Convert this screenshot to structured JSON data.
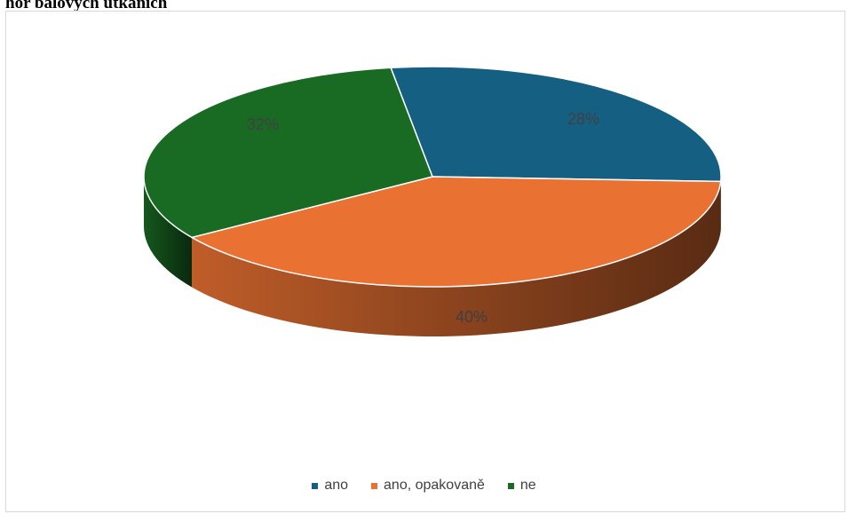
{
  "title": "hor balových utkáních",
  "chart_data": {
    "type": "pie",
    "style": "3d",
    "series": [
      {
        "name": "ano",
        "value": 28,
        "label": "28%",
        "color": "#156082"
      },
      {
        "name": "ano, opakovaně",
        "value": 40,
        "label": "40%",
        "color": "#e97132"
      },
      {
        "name": "ne",
        "value": 32,
        "label": "32%",
        "color": "#196b24"
      }
    ],
    "legend_position": "bottom"
  }
}
